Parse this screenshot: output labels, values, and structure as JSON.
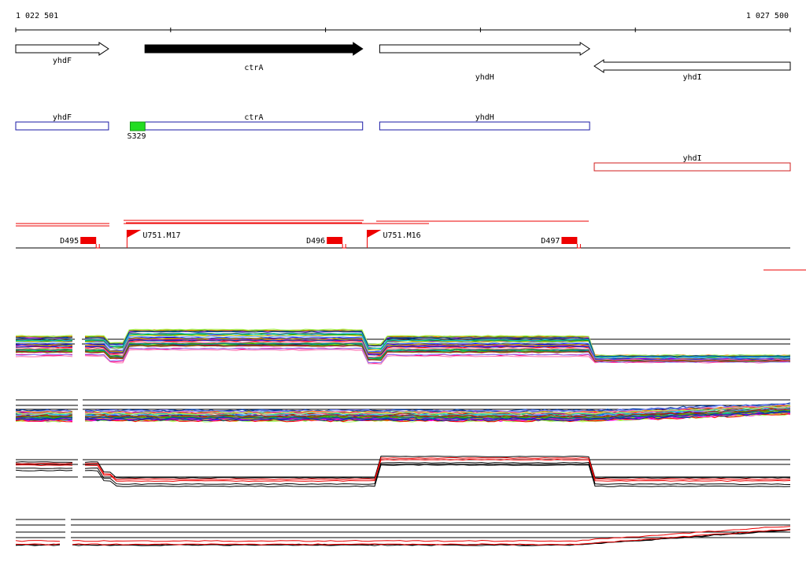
{
  "coordinates": {
    "start_label": "1 022 501",
    "end_label": "1 027 500",
    "start": 1022501,
    "end": 1027500
  },
  "genes": [
    {
      "name": "yhdF",
      "strand": "+",
      "start": 1022501,
      "end": 1023100,
      "highlight": false
    },
    {
      "name": "ctrA",
      "strand": "+",
      "start": 1023335,
      "end": 1024740,
      "highlight": true
    },
    {
      "name": "yhdH",
      "strand": "+",
      "start": 1024850,
      "end": 1026205,
      "highlight": false
    },
    {
      "name": "yhdI",
      "strand": "-",
      "start": 1026235,
      "end": 1027500,
      "highlight": false
    }
  ],
  "transcription_units": [
    {
      "name": "yhdF",
      "start": 1022501,
      "end": 1023100,
      "color": "#1a1aa6"
    },
    {
      "name": "ctrA",
      "start": 1023335,
      "end": 1024740,
      "color": "#1a1aa6"
    },
    {
      "name": "yhdH",
      "start": 1024850,
      "end": 1026205,
      "color": "#1a1aa6"
    },
    {
      "name": "yhdI",
      "start": 1026235,
      "end": 1027500,
      "color": "#d01c1c"
    }
  ],
  "promoter_box": {
    "label": "S329",
    "start": 1023240,
    "end": 1023335,
    "color": "#22dd22"
  },
  "features": {
    "terminators": [
      {
        "label": "D495",
        "start": 1023010,
        "end": 1023105
      },
      {
        "label": "D496",
        "start": 1024600,
        "end": 1024705
      },
      {
        "label": "D497",
        "start": 1026115,
        "end": 1026220
      }
    ],
    "promoters": [
      {
        "label": "U751.M17",
        "pos": 1023270
      },
      {
        "label": "U751.M16",
        "pos": 1024820
      }
    ]
  },
  "colors": {
    "feature_red": "#ee0000",
    "promoter_green": "#22dd22",
    "gene_fill_highlight": "#000000",
    "tu_blue": "#1a1aa6"
  },
  "panels": [
    {
      "id": "expression-panel-1",
      "line_count": 40,
      "reference_lines": 2
    },
    {
      "id": "expression-panel-2",
      "line_count": 40,
      "reference_lines": 3
    },
    {
      "id": "expression-panel-3",
      "line_count": 4,
      "reference_lines": 3
    },
    {
      "id": "expression-panel-4",
      "line_count": 3,
      "reference_lines": 4
    }
  ]
}
